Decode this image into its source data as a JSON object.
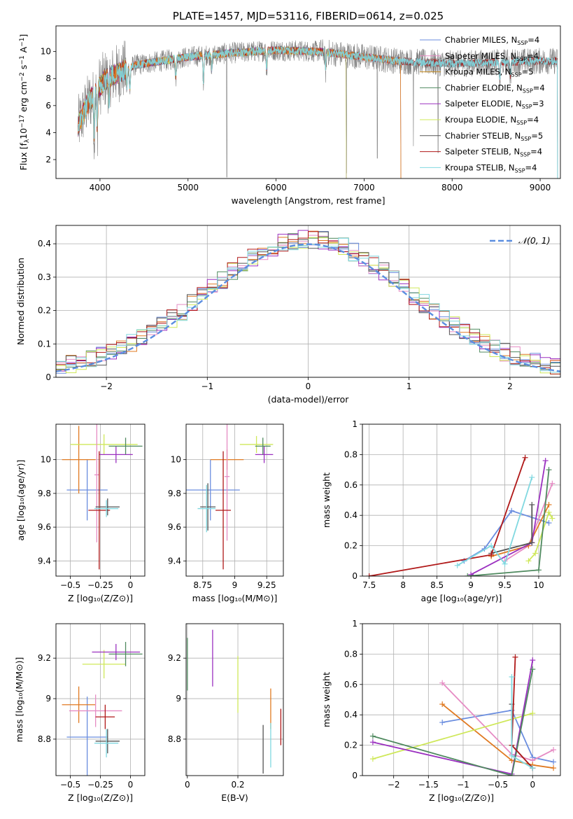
{
  "colors": {
    "chabrier_miles": "#6a8ddf",
    "salpeter_miles": "#e68cc4",
    "kroupa_miles": "#c48a1e",
    "chabrier_elodie": "#4f8a5f",
    "salpeter_elodie": "#9b30c0",
    "kroupa_elodie": "#cfe85a",
    "chabrier_stelib": "#555555",
    "salpeter_stelib": "#b01818",
    "kroupa_stelib": "#80d8e0",
    "orange": "#e07a22",
    "normal_curve": "#5b8ee0",
    "gray_spectrum": "#808080"
  },
  "chart_data": [
    {
      "id": "spectrum",
      "type": "line",
      "title": "PLATE=1457, MJD=53116, FIBERID=0614, z=0.025",
      "xlabel": "wavelength [Angstrom, rest frame]",
      "ylabel_parts": {
        "a": "Flux [f",
        "b": "λ",
        "c": "10",
        "d": "−17",
        "e": " erg cm",
        "f": "−2",
        "g": " s",
        "h": "−1",
        "i": " A",
        "j": "−1",
        "k": "]"
      },
      "xlim": [
        3500,
        9230
      ],
      "ylim": [
        0.6,
        11.9
      ],
      "xticks": [
        4000,
        5000,
        6000,
        7000,
        8000,
        9000
      ],
      "yticks": [
        2,
        4,
        6,
        8,
        10
      ],
      "legend_placement": "top-right",
      "legend": [
        {
          "label": "Chabrier MILES, N",
          "sub": "SSP",
          "rest": "=4",
          "color_key": "chabrier_miles"
        },
        {
          "label": "Salpeter MILES, N",
          "sub": "SSP",
          "rest": "=4",
          "color_key": "salpeter_miles"
        },
        {
          "label": "Kroupa MILES, N",
          "sub": "SSP",
          "rest": "=5",
          "color_key": "kroupa_miles"
        },
        {
          "label": "Chabrier ELODIE, N",
          "sub": "SSP",
          "rest": "=4",
          "color_key": "chabrier_elodie"
        },
        {
          "label": "Salpeter ELODIE, N",
          "sub": "SSP",
          "rest": "=3",
          "color_key": "salpeter_elodie"
        },
        {
          "label": "Kroupa ELODIE, N",
          "sub": "SSP",
          "rest": "=4",
          "color_key": "kroupa_elodie"
        },
        {
          "label": "Chabrier STELIB, N",
          "sub": "SSP",
          "rest": "=5",
          "color_key": "chabrier_stelib"
        },
        {
          "label": "Salpeter STELIB, N",
          "sub": "SSP",
          "rest": "=4",
          "color_key": "salpeter_stelib"
        },
        {
          "label": "Kroupa STELIB, N",
          "sub": "SSP",
          "rest": "=4",
          "color_key": "kroupa_stelib"
        }
      ],
      "continuum": [
        [
          3750,
          4.5
        ],
        [
          3850,
          6.0
        ],
        [
          3950,
          7.0
        ],
        [
          4050,
          7.9
        ],
        [
          4200,
          8.4
        ],
        [
          4400,
          9.0
        ],
        [
          4700,
          9.3
        ],
        [
          5000,
          9.6
        ],
        [
          5500,
          9.9
        ],
        [
          6000,
          10.1
        ],
        [
          6500,
          10.0
        ],
        [
          7000,
          9.6
        ],
        [
          7400,
          9.3
        ],
        [
          8000,
          9.1
        ],
        [
          8500,
          9.2
        ],
        [
          9000,
          9.3
        ],
        [
          9200,
          9.3
        ]
      ],
      "model_ranges": {
        "miles": [
          3750,
          7420
        ],
        "elodie": [
          3750,
          6800
        ],
        "stelib": [
          3750,
          9200
        ]
      },
      "absorption_lines": [
        [
          3934,
          3.2
        ],
        [
          3969,
          3.2
        ],
        [
          4102,
          2.0
        ],
        [
          4305,
          1.6
        ],
        [
          4340,
          1.8
        ],
        [
          4861,
          1.5
        ],
        [
          5175,
          2.2
        ],
        [
          5270,
          1.2
        ],
        [
          5893,
          1.6
        ],
        [
          6563,
          1.4
        ],
        [
          8542,
          1.5
        ],
        [
          8662,
          1.2
        ]
      ],
      "data_spikes": [
        [
          5440,
          0.7
        ],
        [
          6800,
          1.0
        ],
        [
          7150,
          2.1
        ],
        [
          7560,
          3.0
        ],
        [
          7840,
          2.5
        ]
      ]
    },
    {
      "id": "residuals",
      "type": "histogram",
      "xlabel": "(data-model)/error",
      "ylabel": "Normed distribution",
      "xlim": [
        -2.5,
        2.5
      ],
      "ylim": [
        0,
        0.455
      ],
      "xticks": [
        -2,
        -1,
        0,
        1,
        2
      ],
      "yticks": [
        0.0,
        0.1,
        0.2,
        0.3,
        0.4
      ],
      "bin_width": 0.1,
      "reference_curve": {
        "name": "𝒩(0, 1)",
        "mean": 0,
        "sigma": 1
      }
    },
    {
      "id": "age_vs_Z",
      "type": "scatter",
      "xlabel": "Z [log₁₀(Z/Z⊙)]",
      "ylabel": "age  [log₁₀(age/yr)]",
      "xlim": [
        -0.62,
        0.12
      ],
      "ylim": [
        9.31,
        10.21
      ],
      "xticks": [
        -0.5,
        -0.25,
        0.0
      ],
      "yticks": [
        9.4,
        9.6,
        9.8,
        10.0
      ],
      "points": [
        {
          "color_key": "chabrier_miles",
          "x": -0.36,
          "xerr": 0.17,
          "y": 9.82,
          "yerr": 0.18
        },
        {
          "color_key": "orange",
          "x": -0.43,
          "xerr": 0.14,
          "y": 10.0,
          "yerr": 0.2
        },
        {
          "color_key": "kroupa_elodie",
          "x": -0.22,
          "xerr": 0.28,
          "y": 10.09,
          "yerr": 0.06
        },
        {
          "color_key": "salpeter_elodie",
          "x": -0.12,
          "xerr": 0.14,
          "y": 10.03,
          "yerr": 0.05
        },
        {
          "color_key": "chabrier_elodie",
          "x": -0.04,
          "xerr": 0.14,
          "y": 10.08,
          "yerr": 0.05
        },
        {
          "color_key": "salpeter_miles",
          "x": -0.28,
          "xerr": 0.02,
          "y": 9.91,
          "yerr": 0.4
        },
        {
          "color_key": "salpeter_stelib",
          "x": -0.26,
          "xerr": 0.09,
          "y": 9.7,
          "yerr": 0.35
        },
        {
          "color_key": "chabrier_stelib",
          "x": -0.19,
          "xerr": 0.1,
          "y": 9.72,
          "yerr": 0.05
        },
        {
          "color_key": "kroupa_stelib",
          "x": -0.2,
          "xerr": 0.1,
          "y": 9.71,
          "yerr": 0.05
        }
      ]
    },
    {
      "id": "age_vs_mass",
      "type": "scatter",
      "xlabel": "mass [log₁₀(M/M⊙)]",
      "ylabel": "",
      "xlim": [
        8.62,
        9.38
      ],
      "ylim": [
        9.31,
        10.21
      ],
      "xticks": [
        8.75,
        9.0,
        9.25
      ],
      "yticks": [
        9.4,
        9.6,
        9.8,
        10.0
      ],
      "points": [
        {
          "color_key": "chabrier_miles",
          "x": 8.81,
          "xerr": 0.23,
          "y": 9.82,
          "yerr": 0.18
        },
        {
          "color_key": "orange",
          "x": 8.94,
          "xerr": 0.13,
          "y": 10.0,
          "yerr": 0.06
        },
        {
          "color_key": "kroupa_elodie",
          "x": 9.17,
          "xerr": 0.13,
          "y": 10.09,
          "yerr": 0.05
        },
        {
          "color_key": "salpeter_elodie",
          "x": 9.23,
          "xerr": 0.07,
          "y": 10.03,
          "yerr": 0.05
        },
        {
          "color_key": "chabrier_elodie",
          "x": 9.22,
          "xerr": 0.06,
          "y": 10.08,
          "yerr": 0.05
        },
        {
          "color_key": "salpeter_miles",
          "x": 8.94,
          "xerr": 0.02,
          "y": 9.9,
          "yerr": 0.38
        },
        {
          "color_key": "salpeter_stelib",
          "x": 8.91,
          "xerr": 0.06,
          "y": 9.7,
          "yerr": 0.35
        },
        {
          "color_key": "chabrier_stelib",
          "x": 8.79,
          "xerr": 0.06,
          "y": 9.72,
          "yerr": 0.14
        },
        {
          "color_key": "kroupa_stelib",
          "x": 8.78,
          "xerr": 0.07,
          "y": 9.71,
          "yerr": 0.14
        }
      ]
    },
    {
      "id": "weight_vs_age",
      "type": "line",
      "xlabel": "age  [log₁₀(age/yr)]",
      "ylabel": "mass weight",
      "xlim": [
        7.4,
        10.32
      ],
      "ylim": [
        0,
        1.0
      ],
      "xticks": [
        7.5,
        8.0,
        8.5,
        9.0,
        9.5,
        10.0
      ],
      "yticks": [
        0.0,
        0.2,
        0.4,
        0.6,
        0.8,
        1.0
      ],
      "series": [
        {
          "color_key": "chabrier_miles",
          "points": [
            [
              8.9,
              0.1
            ],
            [
              9.2,
              0.18
            ],
            [
              9.6,
              0.43
            ],
            [
              10.15,
              0.35
            ]
          ]
        },
        {
          "color_key": "salpeter_miles",
          "points": [
            [
              9.5,
              0.1
            ],
            [
              9.85,
              0.2
            ],
            [
              10.2,
              0.61
            ]
          ]
        },
        {
          "color_key": "orange",
          "points": [
            [
              9.3,
              0.13
            ],
            [
              9.85,
              0.2
            ],
            [
              10.15,
              0.47
            ]
          ]
        },
        {
          "color_key": "kroupa_elodie",
          "points": [
            [
              9.85,
              0.1
            ],
            [
              9.95,
              0.15
            ],
            [
              10.15,
              0.42
            ],
            [
              10.2,
              0.38
            ]
          ]
        },
        {
          "color_key": "salpeter_elodie",
          "points": [
            [
              9.0,
              0.01
            ],
            [
              9.9,
              0.22
            ],
            [
              10.1,
              0.76
            ]
          ]
        },
        {
          "color_key": "chabrier_elodie",
          "points": [
            [
              8.95,
              0.0
            ],
            [
              10.0,
              0.04
            ],
            [
              10.15,
              0.7
            ]
          ]
        },
        {
          "color_key": "chabrier_stelib",
          "points": [
            [
              9.3,
              0.15
            ],
            [
              9.9,
              0.22
            ],
            [
              9.9,
              0.47
            ]
          ]
        },
        {
          "color_key": "salpeter_stelib",
          "points": [
            [
              7.5,
              0.0
            ],
            [
              9.3,
              0.14
            ],
            [
              9.8,
              0.78
            ]
          ]
        },
        {
          "color_key": "kroupa_stelib",
          "points": [
            [
              8.8,
              0.07
            ],
            [
              9.3,
              0.2
            ],
            [
              9.5,
              0.08
            ],
            [
              9.9,
              0.65
            ]
          ]
        }
      ]
    },
    {
      "id": "mass_vs_Z",
      "type": "scatter",
      "xlabel": "Z [log₁₀(Z/Z⊙)]",
      "ylabel": "mass [log₁₀(M/M⊙)]",
      "xlim": [
        -0.62,
        0.12
      ],
      "ylim": [
        8.62,
        9.37
      ],
      "xticks": [
        -0.5,
        -0.25,
        0.0
      ],
      "yticks": [
        8.8,
        9.0,
        9.2
      ],
      "points": [
        {
          "color_key": "chabrier_miles",
          "x": -0.36,
          "xerr": 0.17,
          "y": 8.81,
          "yerr": 0.2
        },
        {
          "color_key": "orange",
          "x": -0.43,
          "xerr": 0.14,
          "y": 8.97,
          "yerr": 0.09
        },
        {
          "color_key": "kroupa_elodie",
          "x": -0.22,
          "xerr": 0.18,
          "y": 9.17,
          "yerr": 0.07
        },
        {
          "color_key": "salpeter_elodie",
          "x": -0.12,
          "xerr": 0.2,
          "y": 9.23,
          "yerr": 0.04
        },
        {
          "color_key": "chabrier_elodie",
          "x": -0.04,
          "xerr": 0.14,
          "y": 9.22,
          "yerr": 0.06
        },
        {
          "color_key": "salpeter_miles",
          "x": -0.29,
          "xerr": 0.22,
          "y": 8.94,
          "yerr": 0.08
        },
        {
          "color_key": "salpeter_stelib",
          "x": -0.21,
          "xerr": 0.08,
          "y": 8.91,
          "yerr": 0.06
        },
        {
          "color_key": "chabrier_stelib",
          "x": -0.19,
          "xerr": 0.1,
          "y": 8.79,
          "yerr": 0.06
        },
        {
          "color_key": "kroupa_stelib",
          "x": -0.2,
          "xerr": 0.1,
          "y": 8.78,
          "yerr": 0.07
        }
      ]
    },
    {
      "id": "mass_vs_ebv",
      "type": "scatter",
      "xlabel": "E(B-V)",
      "ylabel": "",
      "xlim": [
        -0.005,
        0.38
      ],
      "ylim": [
        8.62,
        9.37
      ],
      "xticks": [
        0.0,
        0.2
      ],
      "yticks": [
        8.8,
        9.0,
        9.2
      ],
      "points": [
        {
          "color_key": "chabrier_elodie",
          "x": 0.0,
          "y": 9.17,
          "yerr": 0.13
        },
        {
          "color_key": "salpeter_elodie",
          "x": 0.1,
          "y": 9.2,
          "yerr": 0.14
        },
        {
          "color_key": "kroupa_elodie",
          "x": 0.2,
          "y": 9.07,
          "yerr": 0.14
        },
        {
          "color_key": "chabrier_stelib",
          "x": 0.3,
          "y": 8.75,
          "yerr": 0.12
        },
        {
          "color_key": "orange",
          "x": 0.33,
          "y": 8.95,
          "yerr": 0.1
        },
        {
          "color_key": "kroupa_stelib",
          "x": 0.33,
          "y": 8.77,
          "yerr": 0.11
        },
        {
          "color_key": "salpeter_stelib",
          "x": 0.37,
          "y": 8.86,
          "yerr": 0.09
        }
      ]
    },
    {
      "id": "weight_vs_Z",
      "type": "line",
      "xlabel": "Z [log₁₀(Z/Z⊙)]",
      "ylabel": "mass weight",
      "xlim": [
        -2.45,
        0.4
      ],
      "ylim": [
        0,
        1.0
      ],
      "xticks": [
        -2.0,
        -1.5,
        -1.0,
        -0.5,
        0.0
      ],
      "yticks": [
        0.0,
        0.2,
        0.4,
        0.6,
        0.8,
        1.0
      ],
      "series": [
        {
          "color_key": "chabrier_miles",
          "points": [
            [
              -1.3,
              0.35
            ],
            [
              -0.3,
              0.43
            ],
            [
              0.0,
              0.12
            ],
            [
              0.3,
              0.09
            ]
          ]
        },
        {
          "color_key": "salpeter_miles",
          "points": [
            [
              -1.3,
              0.61
            ],
            [
              -0.3,
              0.14
            ],
            [
              0.0,
              0.1
            ],
            [
              0.3,
              0.17
            ]
          ]
        },
        {
          "color_key": "orange",
          "points": [
            [
              -1.3,
              0.47
            ],
            [
              -0.3,
              0.1
            ],
            [
              0.0,
              0.07
            ],
            [
              0.3,
              0.05
            ]
          ]
        },
        {
          "color_key": "kroupa_elodie",
          "points": [
            [
              -2.3,
              0.11
            ],
            [
              0.0,
              0.41
            ]
          ]
        },
        {
          "color_key": "salpeter_elodie",
          "points": [
            [
              -2.3,
              0.22
            ],
            [
              -0.3,
              0.01
            ],
            [
              0.0,
              0.76
            ]
          ]
        },
        {
          "color_key": "chabrier_elodie",
          "points": [
            [
              -2.3,
              0.26
            ],
            [
              -0.3,
              0.0
            ],
            [
              0.0,
              0.7
            ]
          ]
        },
        {
          "color_key": "chabrier_stelib",
          "points": [
            [
              -0.3,
              0.47
            ],
            [
              -0.3,
              0.2
            ],
            [
              0.0,
              0.05
            ]
          ]
        },
        {
          "color_key": "salpeter_stelib",
          "points": [
            [
              -0.25,
              0.78
            ],
            [
              -0.3,
              0.2
            ],
            [
              0.0,
              0.05
            ]
          ]
        },
        {
          "color_key": "kroupa_stelib",
          "points": [
            [
              -0.3,
              0.65
            ],
            [
              -0.3,
              0.13
            ],
            [
              0.0,
              0.05
            ]
          ]
        }
      ]
    }
  ]
}
